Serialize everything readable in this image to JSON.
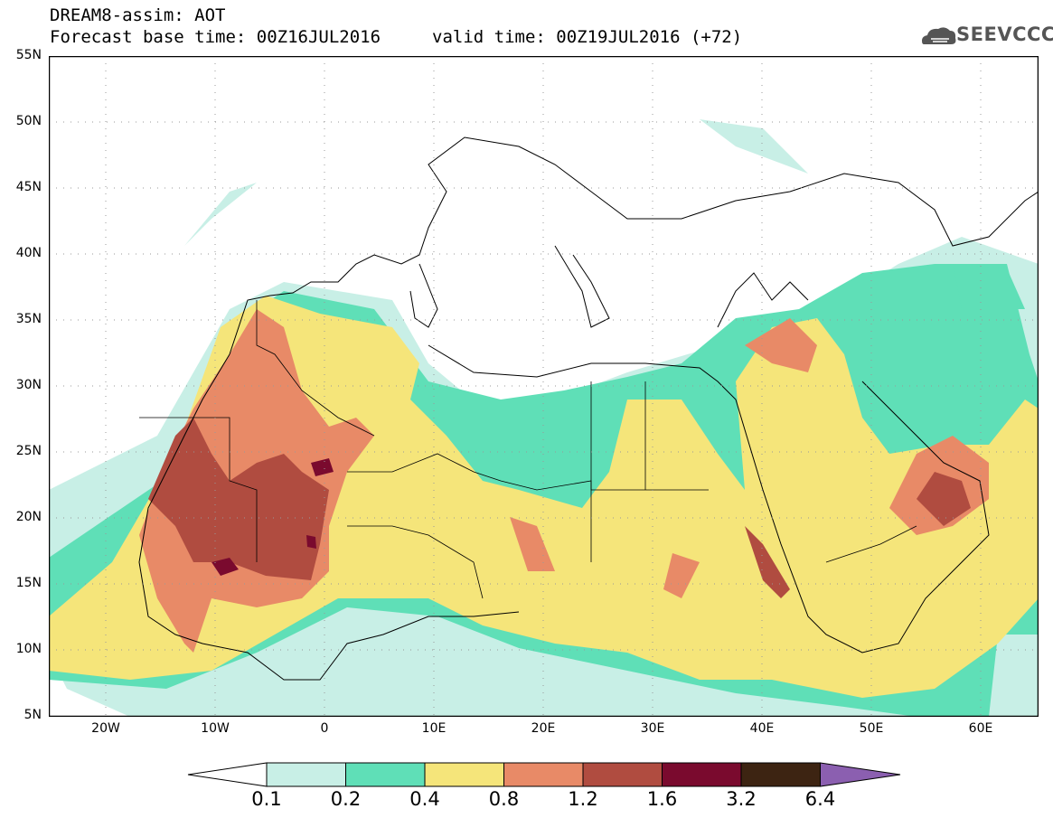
{
  "title": {
    "line1": "DREAM8-assim: AOT",
    "line2": "Forecast base time: 00Z16JUL2016",
    "line3": "valid time: 00Z19JUL2016 (+72)"
  },
  "logo": {
    "text": "SEEVCCC"
  },
  "map": {
    "lat_labels": [
      "55N",
      "50N",
      "45N",
      "40N",
      "35N",
      "30N",
      "25N",
      "20N",
      "15N",
      "10N",
      "5N"
    ],
    "lon_labels": [
      "20W",
      "10W",
      "0",
      "10E",
      "20E",
      "30E",
      "40E",
      "50E",
      "60E"
    ],
    "extent": {
      "lon_min": -25,
      "lon_max": 65,
      "lat_min": 5,
      "lat_max": 55
    }
  },
  "legend": {
    "levels": [
      "0.1",
      "0.2",
      "0.4",
      "0.8",
      "1.2",
      "1.6",
      "3.2",
      "6.4"
    ],
    "colors": [
      "#ffffff",
      "#c8efe6",
      "#5fdfb7",
      "#f5e57a",
      "#e88a67",
      "#b04c40",
      "#7a0a2e",
      "#3d2412",
      "#8b5fb0"
    ]
  }
}
